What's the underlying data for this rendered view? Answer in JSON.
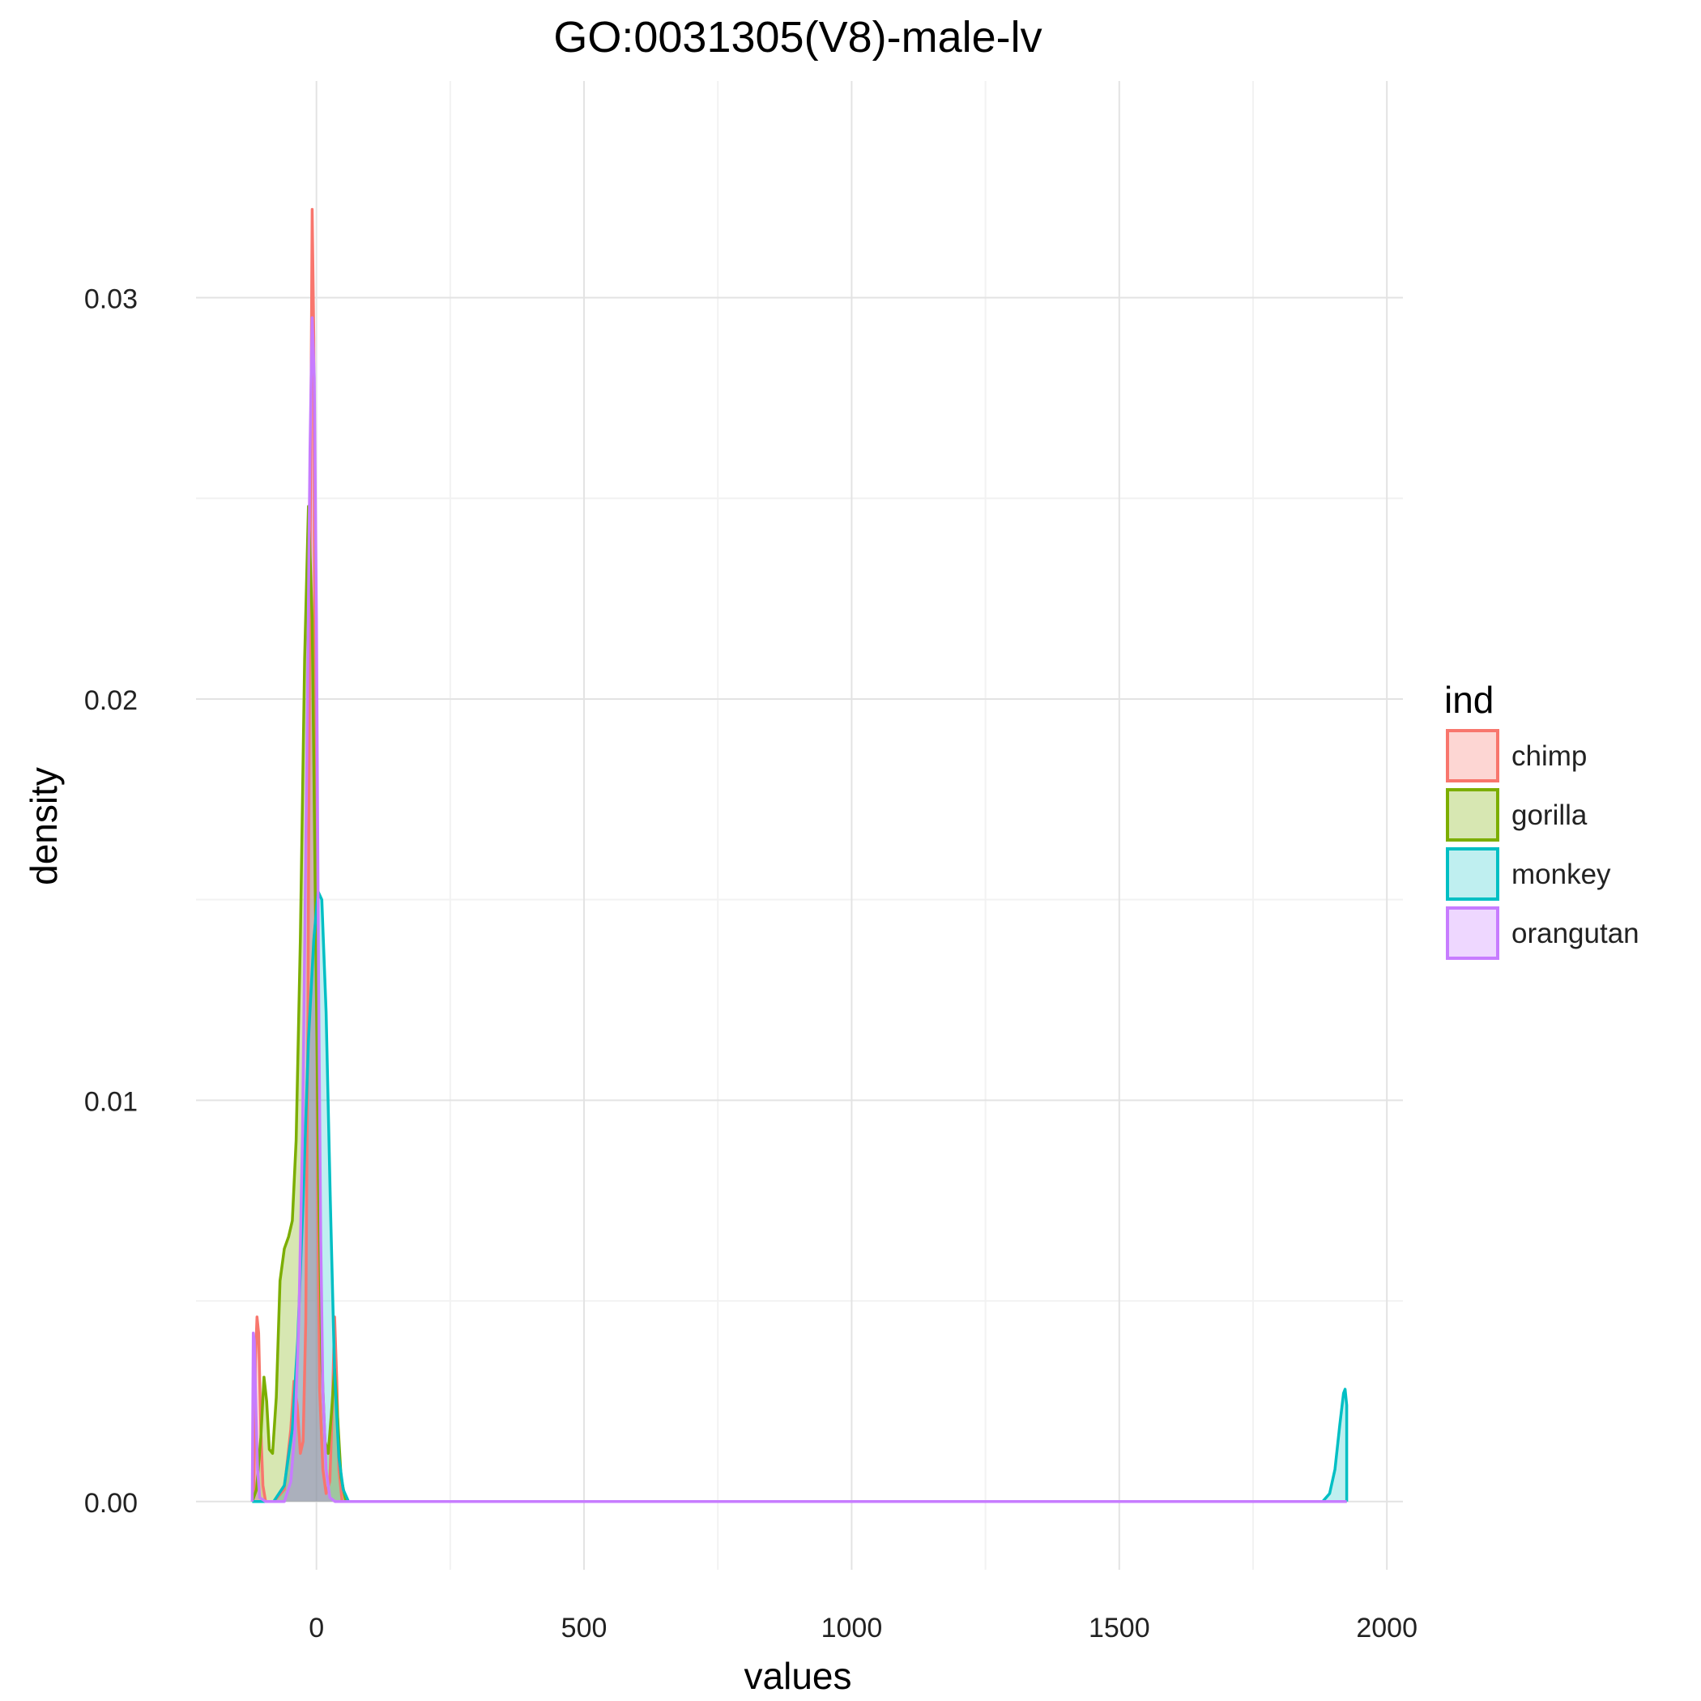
{
  "chart_data": {
    "type": "area",
    "title": "GO:0031305(V8)-male-lv",
    "xlabel": "values",
    "ylabel": "density",
    "xlim": [
      -225,
      2030
    ],
    "ylim": [
      -0.0017,
      0.0354
    ],
    "x_ticks": [
      0,
      500,
      1000,
      1500,
      2000
    ],
    "x_tick_labels": [
      "0",
      "500",
      "1000",
      "1500",
      "2000"
    ],
    "y_ticks": [
      0.0,
      0.01,
      0.02,
      0.03
    ],
    "y_tick_labels": [
      "0.00",
      "0.01",
      "0.02",
      "0.03"
    ],
    "grid": true,
    "legend": {
      "title": "ind",
      "position": "right",
      "entries": [
        "chimp",
        "gorilla",
        "monkey",
        "orangutan"
      ]
    },
    "series": [
      {
        "name": "chimp",
        "color": "#F8766D",
        "fill": "rgba(248,118,109,0.30)",
        "x_range": [
          -120,
          1925
        ],
        "points": [
          [
            -120,
            0
          ],
          [
            -117,
            0.0003
          ],
          [
            -114,
            0.0035
          ],
          [
            -111,
            0.0046
          ],
          [
            -108,
            0.0042
          ],
          [
            -104,
            0.0018
          ],
          [
            -100,
            0.0004
          ],
          [
            -95,
            0
          ],
          [
            -80,
            0
          ],
          [
            -60,
            0.0003
          ],
          [
            -48,
            0.0018
          ],
          [
            -42,
            0.003
          ],
          [
            -36,
            0.0024
          ],
          [
            -30,
            0.0012
          ],
          [
            -25,
            0.0015
          ],
          [
            -20,
            0.0045
          ],
          [
            -16,
            0.012
          ],
          [
            -12,
            0.023
          ],
          [
            -8,
            0.0322
          ],
          [
            -5,
            0.029
          ],
          [
            -2,
            0.018
          ],
          [
            2,
            0.008
          ],
          [
            6,
            0.0028
          ],
          [
            12,
            0.0008
          ],
          [
            18,
            0.0002
          ],
          [
            25,
            0.0005
          ],
          [
            30,
            0.0025
          ],
          [
            34,
            0.0046
          ],
          [
            38,
            0.003
          ],
          [
            42,
            0.0008
          ],
          [
            48,
            0
          ],
          [
            1925,
            0
          ]
        ]
      },
      {
        "name": "gorilla",
        "color": "#7CAE00",
        "fill": "rgba(124,174,0,0.30)",
        "x_range": [
          -120,
          1925
        ],
        "points": [
          [
            -120,
            0
          ],
          [
            -112,
            0.0003
          ],
          [
            -104,
            0.0016
          ],
          [
            -98,
            0.0031
          ],
          [
            -93,
            0.0025
          ],
          [
            -88,
            0.0013
          ],
          [
            -82,
            0.0012
          ],
          [
            -75,
            0.0026
          ],
          [
            -68,
            0.0055
          ],
          [
            -60,
            0.0063
          ],
          [
            -52,
            0.0066
          ],
          [
            -45,
            0.007
          ],
          [
            -38,
            0.009
          ],
          [
            -30,
            0.014
          ],
          [
            -22,
            0.021
          ],
          [
            -15,
            0.0248
          ],
          [
            -8,
            0.022
          ],
          [
            -2,
            0.015
          ],
          [
            4,
            0.008
          ],
          [
            10,
            0.0035
          ],
          [
            16,
            0.0015
          ],
          [
            22,
            0.0012
          ],
          [
            28,
            0.0022
          ],
          [
            34,
            0.0033
          ],
          [
            40,
            0.002
          ],
          [
            46,
            0.0006
          ],
          [
            55,
            0
          ],
          [
            1925,
            0
          ]
        ]
      },
      {
        "name": "monkey",
        "color": "#00BFC4",
        "fill": "rgba(0,191,196,0.25)",
        "x_range": [
          -120,
          1925
        ],
        "points": [
          [
            -120,
            0
          ],
          [
            -80,
            0
          ],
          [
            -60,
            0.0004
          ],
          [
            -45,
            0.0018
          ],
          [
            -35,
            0.004
          ],
          [
            -25,
            0.0075
          ],
          [
            -15,
            0.0115
          ],
          [
            -5,
            0.014
          ],
          [
            3,
            0.0152
          ],
          [
            10,
            0.015
          ],
          [
            18,
            0.0122
          ],
          [
            26,
            0.0075
          ],
          [
            34,
            0.0032
          ],
          [
            42,
            0.0011
          ],
          [
            50,
            0.0003
          ],
          [
            60,
            0
          ],
          [
            1880,
            0
          ],
          [
            1893,
            0.0002
          ],
          [
            1903,
            0.0008
          ],
          [
            1912,
            0.0019
          ],
          [
            1919,
            0.0027
          ],
          [
            1922,
            0.0028
          ],
          [
            1925,
            0.0024
          ],
          [
            1925,
            0
          ]
        ]
      },
      {
        "name": "orangutan",
        "color": "#C77CFF",
        "fill": "rgba(199,124,255,0.30)",
        "x_range": [
          -120,
          1925
        ],
        "points": [
          [
            -120,
            0
          ],
          [
            -118,
            0.0042
          ],
          [
            -116,
            0.004
          ],
          [
            -113,
            0.0022
          ],
          [
            -110,
            0.0008
          ],
          [
            -106,
            0.0001
          ],
          [
            -95,
            0
          ],
          [
            -60,
            0
          ],
          [
            -48,
            0.0005
          ],
          [
            -40,
            0.0018
          ],
          [
            -33,
            0.0045
          ],
          [
            -26,
            0.0092
          ],
          [
            -18,
            0.0185
          ],
          [
            -12,
            0.0262
          ],
          [
            -8,
            0.0295
          ],
          [
            -4,
            0.028
          ],
          [
            0,
            0.022
          ],
          [
            4,
            0.013
          ],
          [
            8,
            0.0065
          ],
          [
            12,
            0.0028
          ],
          [
            18,
            0.0008
          ],
          [
            25,
            0.0001
          ],
          [
            35,
            0
          ],
          [
            1925,
            0
          ]
        ]
      }
    ]
  }
}
